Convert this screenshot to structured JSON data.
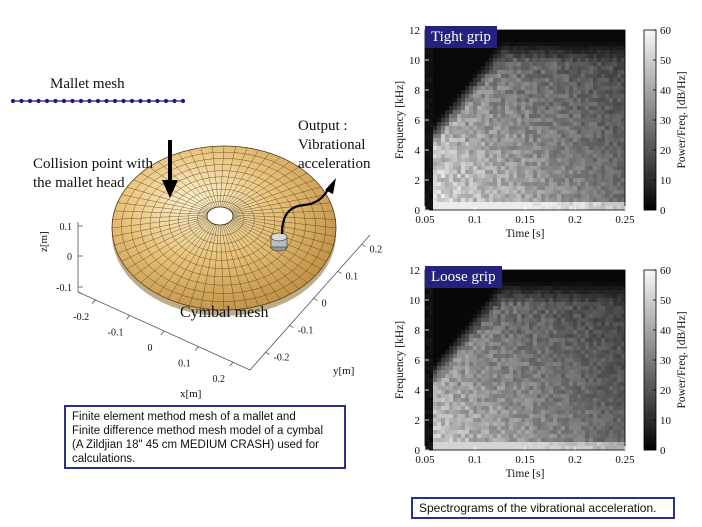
{
  "left": {
    "mallet_label": "Mallet mesh",
    "collision_label_line1": "Collision point with",
    "collision_label_line2": "the mallet head",
    "output_label_line1": "Output :",
    "output_label_line2": "Vibrational",
    "output_label_line3": "acceleration",
    "cymbal_label": "Cymbal mesh",
    "axes": {
      "z_label": "z[m]",
      "z_ticks": [
        "0.1",
        "0",
        "-0.1"
      ],
      "x_label": "x[m]",
      "x_ticks": [
        "-0.2",
        "-0.1",
        "0",
        "0.1",
        "0.2"
      ],
      "y_label": "y[m]",
      "y_ticks": [
        "0.2",
        "0.1",
        "0",
        "-0.1",
        "-0.2"
      ]
    },
    "caption": "Finite element method mesh of a mallet and Finite difference method mesh model of a cymbal (A Zildjian 18\" 45 cm MEDIUM CRASH) used for calculations.",
    "caption_lines": [
      "Finite element method mesh of a mallet and",
      "Finite difference method mesh model of a cymbal",
      "(A Zildjian 18\" 45 cm MEDIUM CRASH) used for",
      "calculations."
    ]
  },
  "chart_data": [
    {
      "type": "heatmap",
      "title": "Tight grip",
      "xlabel": "Time [s]",
      "ylabel": "Frequency [kHz]",
      "x_ticks": [
        "0.05",
        "0.1",
        "0.15",
        "0.2",
        "0.25"
      ],
      "y_ticks": [
        "0",
        "2",
        "4",
        "6",
        "8",
        "10",
        "12"
      ],
      "xlim": [
        0.05,
        0.25
      ],
      "ylim": [
        0,
        12
      ],
      "colorbar": {
        "label": "Power/Freq. [dB/Hz]",
        "ticks": [
          "0",
          "10",
          "20",
          "30",
          "40",
          "50",
          "60"
        ],
        "range": [
          0,
          60
        ]
      }
    },
    {
      "type": "heatmap",
      "title": "Loose grip",
      "xlabel": "Time [s]",
      "ylabel": "Frequency [kHz]",
      "x_ticks": [
        "0.05",
        "0.1",
        "0.15",
        "0.2",
        "0.25"
      ],
      "y_ticks": [
        "0",
        "2",
        "4",
        "6",
        "8",
        "10",
        "12"
      ],
      "xlim": [
        0.05,
        0.25
      ],
      "ylim": [
        0,
        12
      ],
      "colorbar": {
        "label": "Power/Freq. [dB/Hz]",
        "ticks": [
          "0",
          "10",
          "20",
          "30",
          "40",
          "50",
          "60"
        ],
        "range": [
          0,
          60
        ]
      }
    }
  ],
  "right": {
    "caption": "Spectrograms of the vibrational acceleration."
  }
}
